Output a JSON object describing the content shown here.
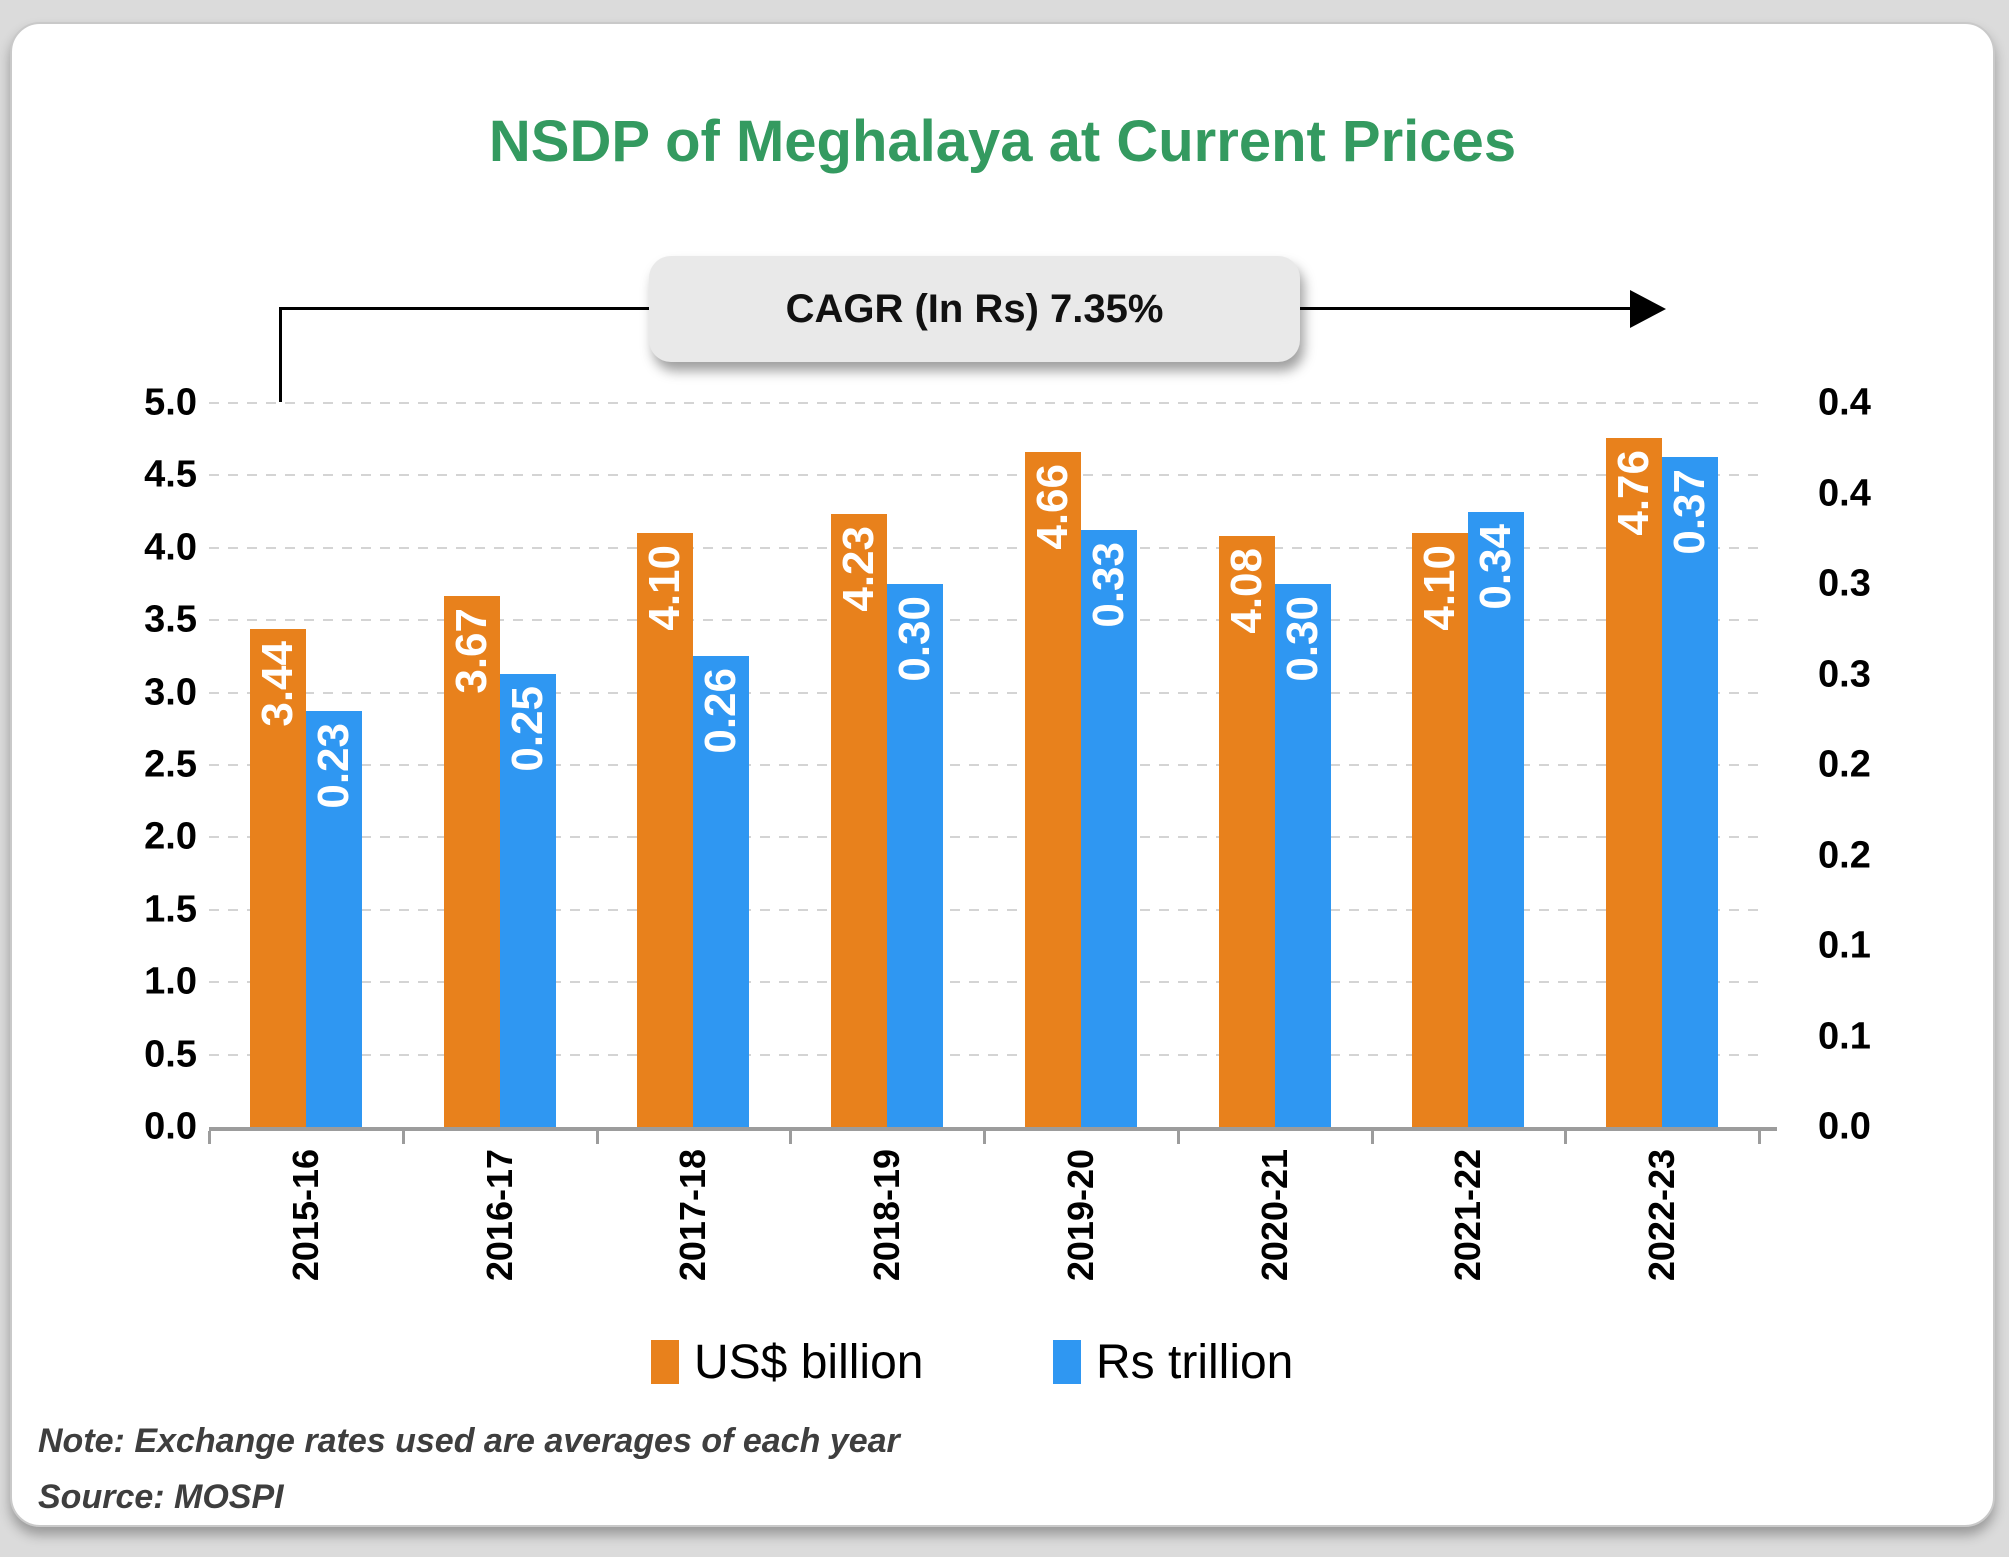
{
  "title": "NSDP of Meghalaya at Current Prices",
  "callout": {
    "label": "CAGR (In Rs) 7.35%"
  },
  "chart_data": {
    "type": "bar",
    "title": "NSDP of Meghalaya at Current Prices",
    "categories": [
      "2015-16",
      "2016-17",
      "2017-18",
      "2018-19",
      "2019-20",
      "2020-21",
      "2021-22",
      "2022-23"
    ],
    "series": [
      {
        "name": "US$ billion",
        "axis": "left",
        "color": "#E8811C",
        "values": [
          3.44,
          3.67,
          4.1,
          4.23,
          4.66,
          4.08,
          4.1,
          4.76
        ],
        "labels": [
          "3.44",
          "3.67",
          "4.10",
          "4.23",
          "4.66",
          "4.08",
          "4.10",
          "4.76"
        ]
      },
      {
        "name": "Rs trillion",
        "axis": "right",
        "color": "#2F97F2",
        "values": [
          0.23,
          0.25,
          0.26,
          0.3,
          0.33,
          0.3,
          0.34,
          0.37
        ],
        "labels": [
          "0.23",
          "0.25",
          "0.26",
          "0.30",
          "0.33",
          "0.30",
          "0.34",
          "0.37"
        ]
      }
    ],
    "left_axis": {
      "min": 0,
      "max": 5.0,
      "step": 0.5,
      "tick_labels": [
        "5.0",
        "4.5",
        "4.0",
        "3.5",
        "3.0",
        "2.5",
        "2.0",
        "1.5",
        "1.0",
        "0.5",
        "0.0"
      ]
    },
    "right_axis": {
      "min": 0,
      "max": 0.4,
      "step": 0.05,
      "tick_labels": [
        "0.4",
        "0.4",
        "0.3",
        "0.3",
        "0.2",
        "0.2",
        "0.1",
        "0.1",
        "0.0"
      ]
    },
    "grid": "horizontal dashed",
    "legend_position": "bottom",
    "annotation": "CAGR (In Rs) 7.35%"
  },
  "notes": {
    "note": "Note: Exchange rates used are averages of each year",
    "source": "Source: MOSPI"
  },
  "colors": {
    "title_green": "#349A60",
    "orange": "#E8811C",
    "blue": "#2F97F2",
    "grid": "#D4D4D4",
    "axis_line": "#9C9C9C",
    "callout_bg": "#E9E9E9",
    "note_text": "#3E3E3E",
    "page_bg": "#DBDBDB"
  }
}
